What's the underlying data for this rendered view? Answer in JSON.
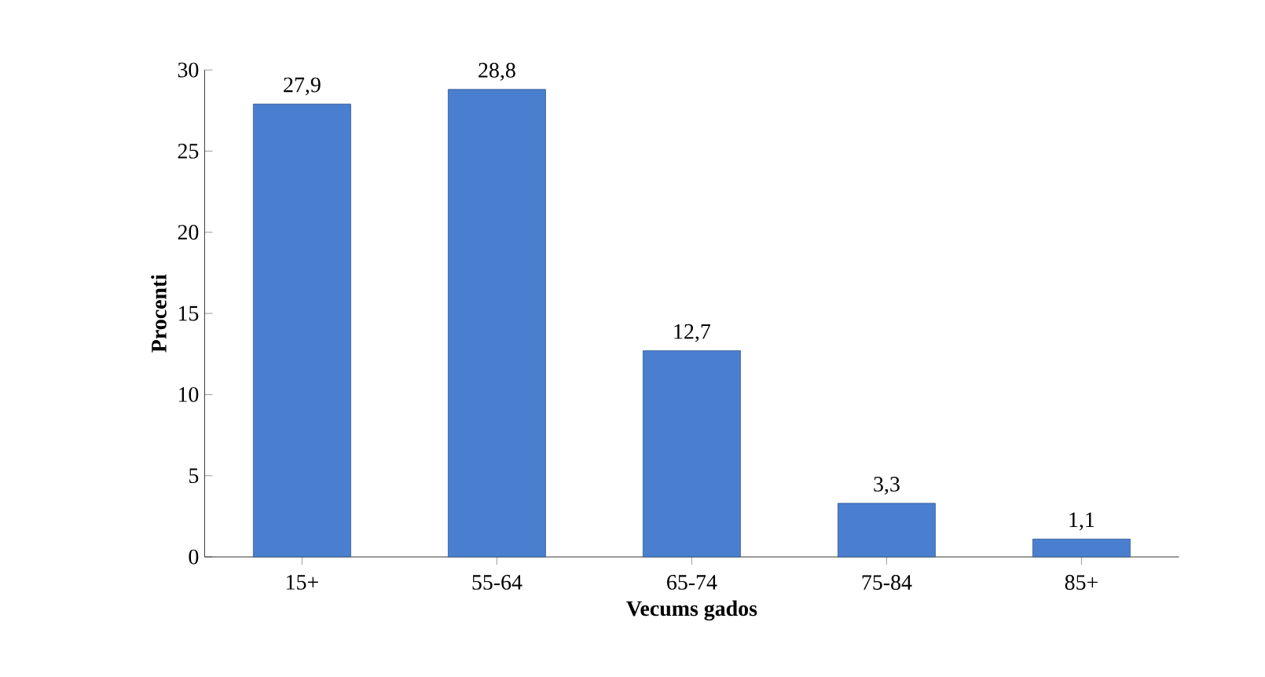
{
  "chart_data": {
    "type": "bar",
    "xlabel": "Vecums gados",
    "ylabel": "Procenti",
    "categories": [
      "15+",
      "55-64",
      "65-74",
      "75-84",
      "85+"
    ],
    "values": [
      27.9,
      28.8,
      12.7,
      3.3,
      1.1
    ],
    "value_labels": [
      "27,9",
      "28,8",
      "12,7",
      "3,3",
      "1,1"
    ],
    "color": "#4a7fd0",
    "ylim": [
      0,
      30
    ],
    "yticks": [
      0,
      5,
      10,
      15,
      20,
      25,
      30
    ]
  }
}
